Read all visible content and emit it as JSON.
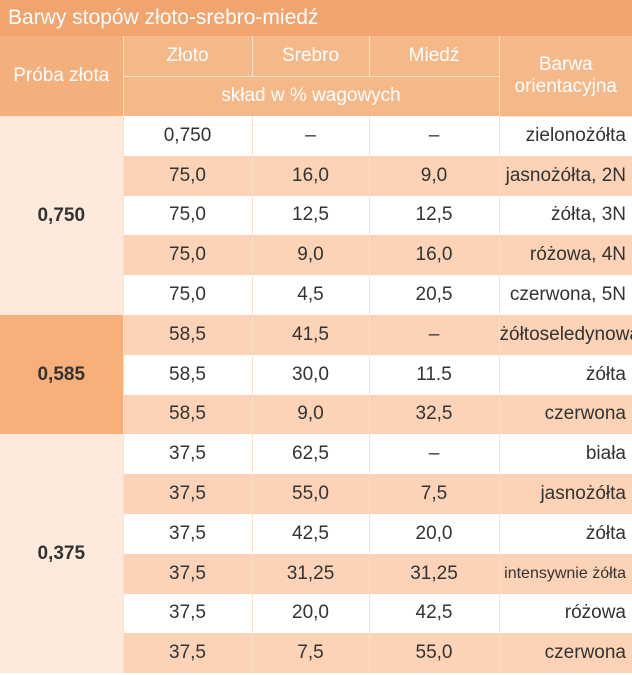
{
  "title": "Barwy stopów złoto-srebro-miedź",
  "headers": {
    "proba": "Próba złota",
    "gold": "Złoto",
    "silver": "Srebro",
    "copper": "Miedź",
    "color_line1": "Barwa",
    "color_line2": "orientacyjna",
    "unit": "skład w % wagowych"
  },
  "groups": [
    {
      "label": "0,750",
      "rows": [
        {
          "gold": "0,750",
          "silver": "–",
          "copper": "–",
          "color": "zielonożółta"
        },
        {
          "gold": "75,0",
          "silver": "16,0",
          "copper": "9,0",
          "color": "jasnożółta, 2N"
        },
        {
          "gold": "75,0",
          "silver": "12,5",
          "copper": "12,5",
          "color": "żółta, 3N"
        },
        {
          "gold": "75,0",
          "silver": "9,0",
          "copper": "16,0",
          "color": "różowa, 4N"
        },
        {
          "gold": "75,0",
          "silver": "4,5",
          "copper": "20,5",
          "color": "czerwona, 5N"
        }
      ]
    },
    {
      "label": "0,585",
      "rows": [
        {
          "gold": "58,5",
          "silver": "41,5",
          "copper": "–",
          "color": "żółtoseledynowa"
        },
        {
          "gold": "58,5",
          "silver": "30,0",
          "copper": "11.5",
          "color": "żółta"
        },
        {
          "gold": "58,5",
          "silver": "9,0",
          "copper": "32,5",
          "color": "czerwona"
        }
      ]
    },
    {
      "label": "0,375",
      "rows": [
        {
          "gold": "37,5",
          "silver": "62,5",
          "copper": "–",
          "color": "biała"
        },
        {
          "gold": "37,5",
          "silver": "55,0",
          "copper": "7,5",
          "color": "jasnożółta"
        },
        {
          "gold": "37,5",
          "silver": "42,5",
          "copper": "20,0",
          "color": "żółta"
        },
        {
          "gold": "37,5",
          "silver": "31,25",
          "copper": "31,25",
          "color": "intensywnie żółta"
        },
        {
          "gold": "37,5",
          "silver": "20,0",
          "copper": "42,5",
          "color": "różowa"
        },
        {
          "gold": "37,5",
          "silver": "7,5",
          "copper": "55,0",
          "color": "czerwona"
        }
      ]
    }
  ]
}
